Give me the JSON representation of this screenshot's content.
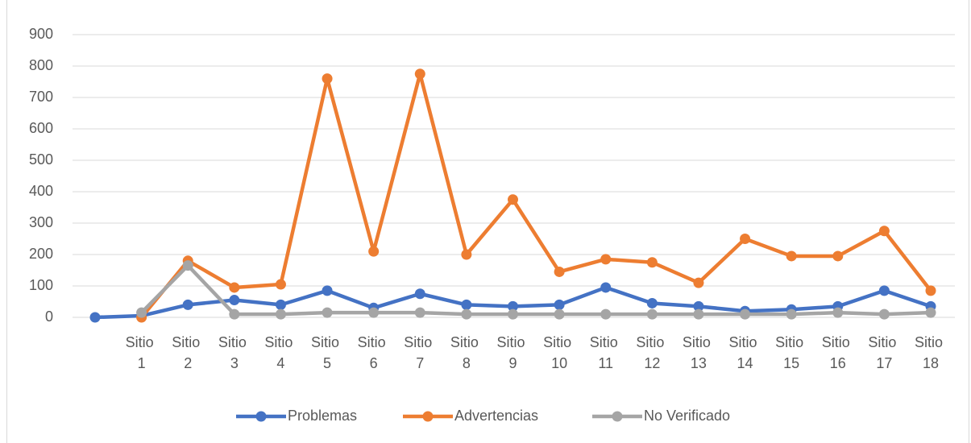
{
  "chart_data": {
    "type": "line",
    "categories": [
      null,
      "Sitio 1",
      "Sitio 2",
      "Sitio 3",
      "Sitio 4",
      "Sitio 5",
      "Sitio 6",
      "Sitio 7",
      "Sitio 8",
      "Sitio 9",
      "Sitio 10",
      "Sitio 11",
      "Sitio 12",
      "Sitio 13",
      "Sitio 14",
      "Sitio 15",
      "Sitio 16",
      "Sitio 17",
      "Sitio 18"
    ],
    "series": [
      {
        "name": "Problemas",
        "color": "#4472c4",
        "values": [
          0,
          5,
          40,
          55,
          40,
          85,
          30,
          75,
          40,
          35,
          40,
          95,
          45,
          35,
          20,
          25,
          35,
          85,
          35
        ]
      },
      {
        "name": "Advertencias",
        "color": "#ed7d31",
        "values": [
          null,
          0,
          180,
          95,
          105,
          760,
          210,
          775,
          200,
          375,
          145,
          185,
          175,
          110,
          250,
          195,
          195,
          275,
          85
        ]
      },
      {
        "name": "No Verificado",
        "color": "#a5a5a5",
        "values": [
          null,
          15,
          165,
          10,
          10,
          15,
          15,
          15,
          10,
          10,
          10,
          10,
          10,
          10,
          10,
          10,
          15,
          10,
          15
        ]
      }
    ],
    "ylim": [
      0,
      900
    ],
    "yticks": [
      0,
      100,
      200,
      300,
      400,
      500,
      600,
      700,
      800,
      900
    ],
    "grid": true,
    "legend": "bottom"
  }
}
